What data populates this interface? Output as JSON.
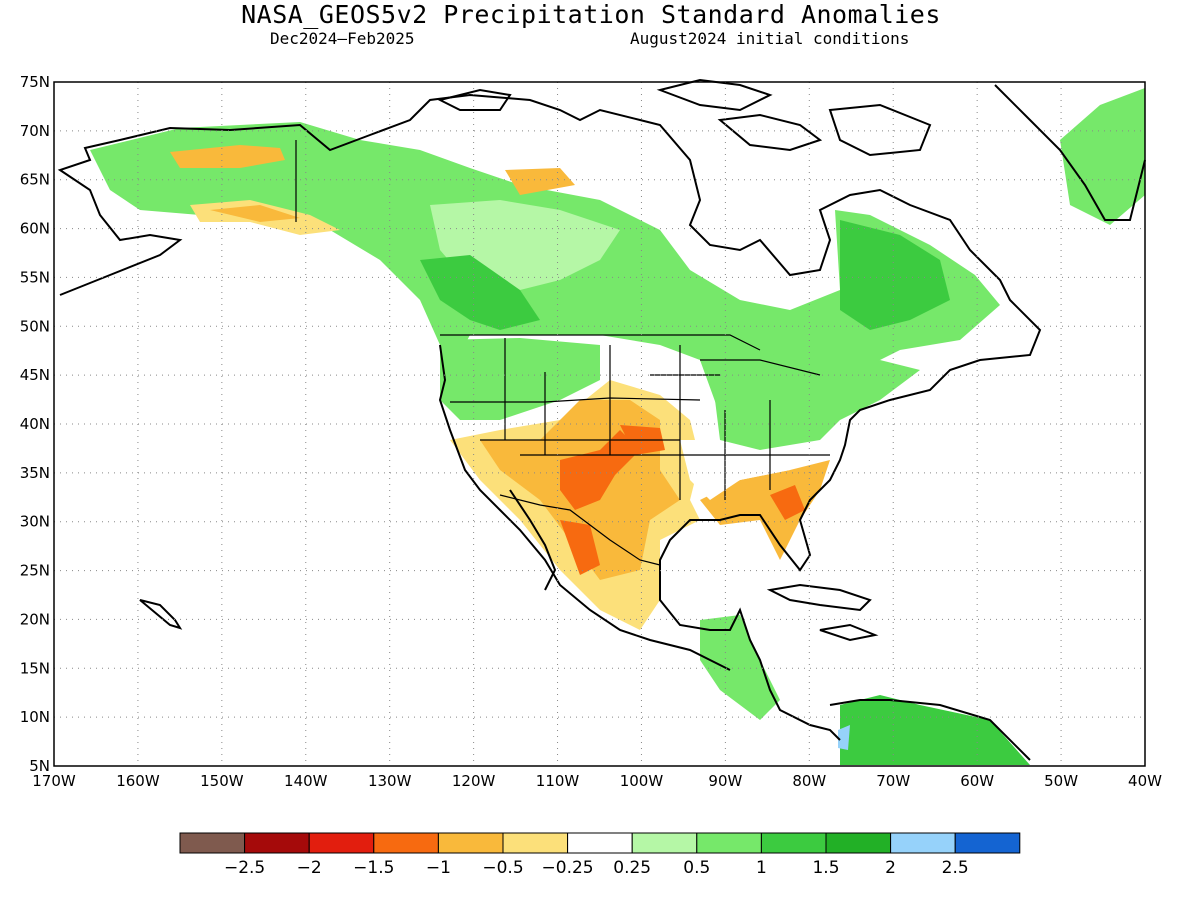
{
  "title": "NASA_GEOS5v2 Precipitation Standard Anomalies",
  "subtitle_left": "Dec2024–Feb2025",
  "subtitle_right": "August2024 initial conditions",
  "map": {
    "lon_range": [
      -170,
      -40
    ],
    "lat_range": [
      5,
      75
    ],
    "lat_ticks": [
      "75N",
      "70N",
      "65N",
      "60N",
      "55N",
      "50N",
      "45N",
      "40N",
      "35N",
      "30N",
      "25N",
      "20N",
      "15N",
      "10N",
      "5N"
    ],
    "lon_ticks": [
      "170W",
      "160W",
      "150W",
      "140W",
      "130W",
      "120W",
      "110W",
      "100W",
      "90W",
      "80W",
      "70W",
      "60W",
      "50W",
      "40W"
    ],
    "grid": "dotted"
  },
  "colorbar": {
    "colors": [
      "#7f5a4e",
      "#a50a0a",
      "#e21e0e",
      "#f76a10",
      "#f9b93b",
      "#fce07a",
      "#ffffff",
      "#b5f7a6",
      "#76e86a",
      "#3ccb40",
      "#22b026",
      "#96d2fa",
      "#1464d2"
    ],
    "labels": [
      "−2.5",
      "−2",
      "−1.5",
      "−1",
      "−0.5",
      "−0.25",
      "0.25",
      "0.5",
      "1",
      "1.5",
      "2",
      "2.5"
    ]
  }
}
